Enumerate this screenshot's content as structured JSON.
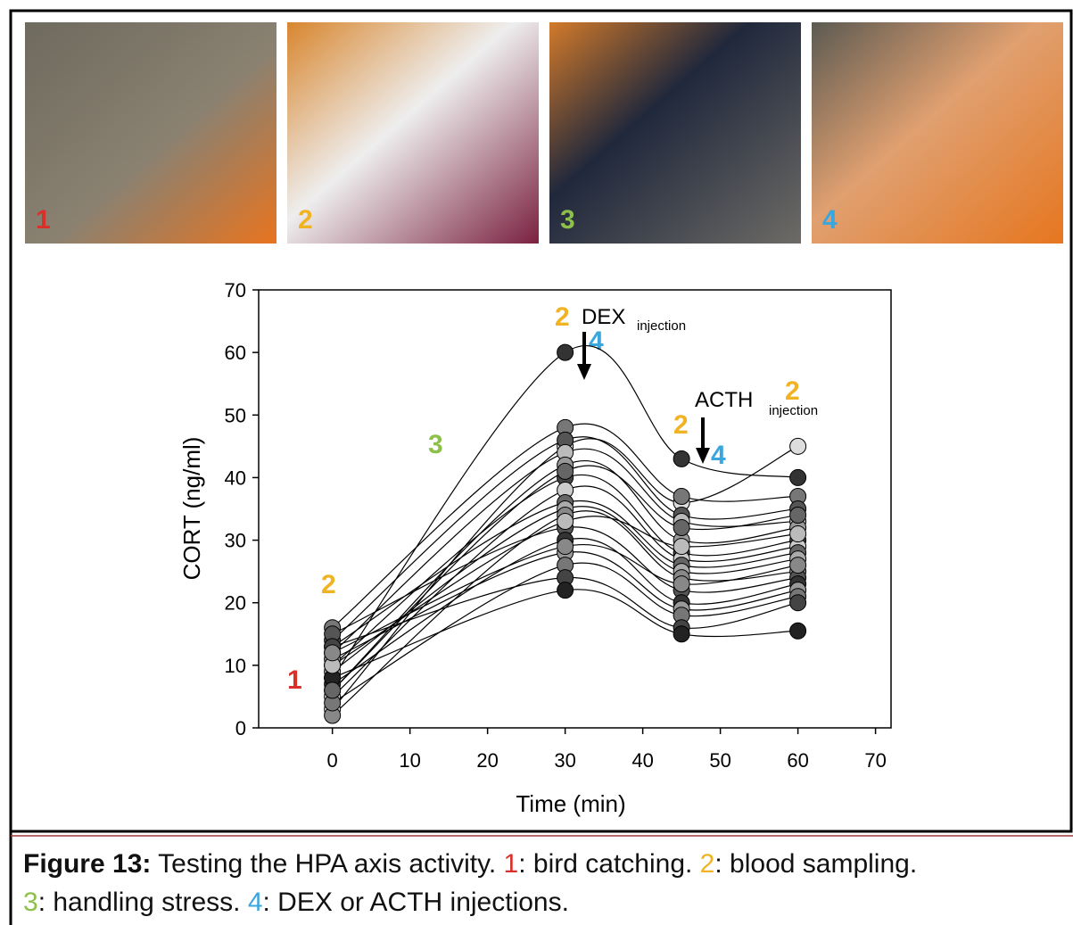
{
  "photo_labels": [
    "1",
    "2",
    "3",
    "4"
  ],
  "chart_data": {
    "type": "line",
    "xlabel": "Time (min)",
    "ylabel": "CORT (ng/ml)",
    "annotations": [
      "1",
      "2",
      "3",
      "2",
      "DEX",
      "injection",
      "4",
      "2",
      "ACTH",
      "injection",
      "2",
      "4"
    ],
    "x": [
      0,
      30,
      45,
      60
    ],
    "xlim": [
      -9.5,
      72
    ],
    "ylim": [
      0,
      70
    ],
    "xticks": [
      0,
      10,
      20,
      30,
      40,
      50,
      60,
      70
    ],
    "yticks": [
      0,
      10,
      20,
      30,
      40,
      50,
      60,
      70
    ],
    "line_color": "#000000",
    "series": [
      {
        "color": "#333333",
        "values": [
          8,
          60,
          43,
          40
        ]
      },
      {
        "color": "#dddddd",
        "values": [
          3,
          45,
          36,
          45
        ]
      },
      {
        "color": "#777777",
        "values": [
          16,
          48,
          37,
          37
        ]
      },
      {
        "color": "#555555",
        "values": [
          14,
          46,
          34,
          35
        ]
      },
      {
        "color": "#bbbbbb",
        "values": [
          12,
          44,
          33,
          33
        ]
      },
      {
        "color": "#999999",
        "values": [
          6,
          42,
          30,
          32
        ]
      },
      {
        "color": "#444444",
        "values": [
          10,
          40,
          28,
          30
        ]
      },
      {
        "color": "#cccccc",
        "values": [
          5,
          38,
          27,
          29
        ]
      },
      {
        "color": "#666666",
        "values": [
          13,
          36,
          26,
          28
        ]
      },
      {
        "color": "#aaaaaa",
        "values": [
          9,
          35,
          25,
          27
        ]
      },
      {
        "color": "#888888",
        "values": [
          2,
          34,
          24,
          25
        ]
      },
      {
        "color": "#555555",
        "values": [
          15,
          32,
          22,
          24
        ]
      },
      {
        "color": "#333333",
        "values": [
          7,
          30,
          20,
          23
        ]
      },
      {
        "color": "#999999",
        "values": [
          11,
          28,
          19,
          22
        ]
      },
      {
        "color": "#777777",
        "values": [
          4,
          26,
          18,
          21
        ]
      },
      {
        "color": "#444444",
        "values": [
          13,
          24,
          16,
          20
        ]
      },
      {
        "color": "#222222",
        "values": [
          8,
          22,
          15,
          15.5
        ]
      },
      {
        "color": "#bbbbbb",
        "values": [
          10,
          33,
          29,
          31
        ]
      },
      {
        "color": "#666666",
        "values": [
          6,
          41,
          32,
          34
        ]
      },
      {
        "color": "#888888",
        "values": [
          12,
          29,
          23,
          26
        ]
      }
    ]
  },
  "caption": {
    "line1": [
      "Figure 13:",
      " Testing the HPA axis activity. ",
      "1",
      ": bird catching. ",
      "2",
      ": blood sampling."
    ],
    "line2": [
      "3",
      ": handling stress. ",
      "4",
      ": DEX or ACTH injections."
    ]
  }
}
